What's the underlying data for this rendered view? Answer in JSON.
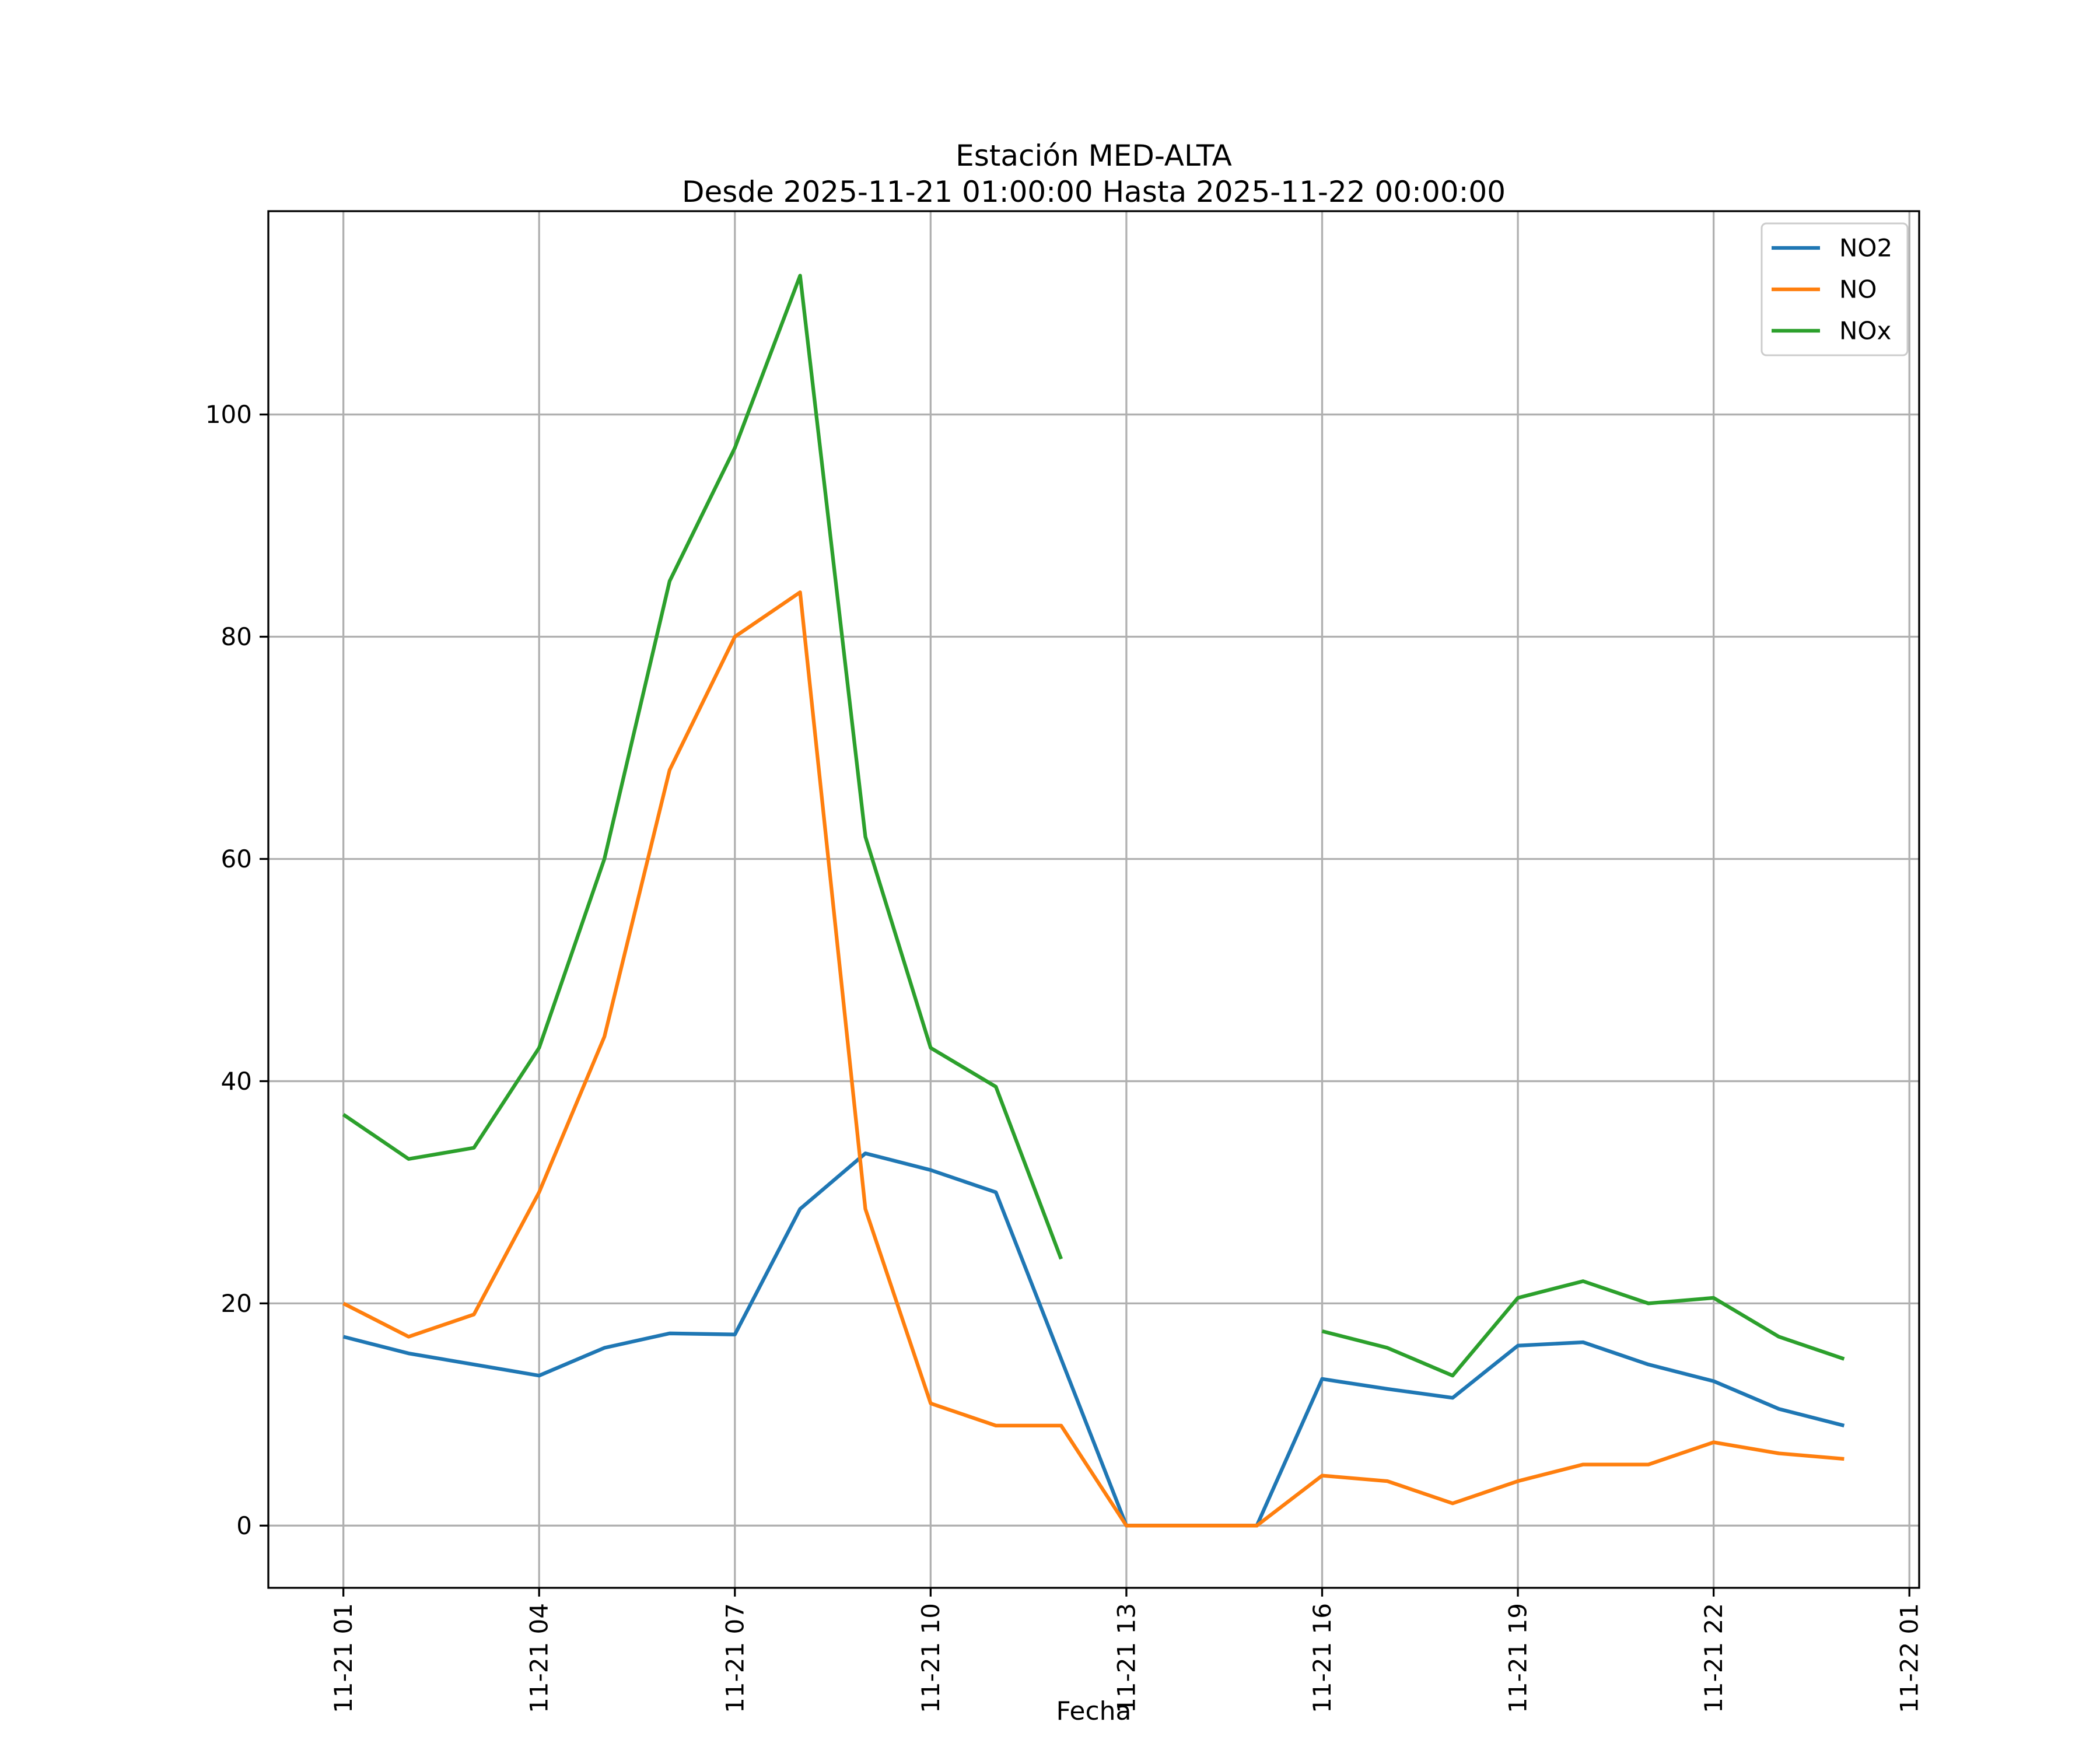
{
  "title": {
    "line1": "Estación MED-ALTA",
    "line2": "Desde 2025-11-21 01:00:00 Hasta 2025-11-22 00:00:00"
  },
  "chart_data": {
    "type": "line",
    "title": "Estación MED-ALTA\nDesde 2025-11-21 01:00:00 Hasta 2025-11-22 00:00:00",
    "xlabel": "Fecha",
    "ylabel": "",
    "grid": true,
    "legend_position": "upper right",
    "x_unit": "hour",
    "x_hours": [
      1,
      2,
      3,
      4,
      5,
      6,
      7,
      8,
      9,
      10,
      11,
      12,
      13,
      14,
      15,
      16,
      17,
      18,
      19,
      20,
      21,
      22,
      23,
      24
    ],
    "x_tick_hours": [
      1,
      4,
      7,
      10,
      13,
      16,
      19,
      22,
      25
    ],
    "x_tick_labels": [
      "11-21 01",
      "11-21 04",
      "11-21 07",
      "11-21 10",
      "11-21 13",
      "11-21 16",
      "11-21 19",
      "11-21 22",
      "11-22 01"
    ],
    "x_tick_rotation": 90,
    "y_ticks": [
      0,
      20,
      40,
      60,
      80,
      100
    ],
    "xlim": [
      -0.15,
      25.15
    ],
    "ylim": [
      -5.6,
      118.3
    ],
    "series": [
      {
        "name": "NO2",
        "color": "#1f77b4",
        "values": [
          17,
          15.5,
          14.5,
          13.5,
          16,
          17.3,
          17.2,
          28.5,
          33.5,
          32,
          30,
          15,
          0,
          0,
          0,
          13.2,
          12.3,
          11.5,
          16.2,
          16.5,
          14.5,
          13,
          10.5,
          9
        ]
      },
      {
        "name": "NO",
        "color": "#ff7f0e",
        "values": [
          20,
          17,
          19,
          30,
          44,
          68,
          80,
          84,
          28.5,
          11,
          9,
          9,
          0,
          0,
          0,
          4.5,
          4,
          2,
          4,
          5.5,
          5.5,
          7.5,
          6.5,
          6
        ]
      },
      {
        "name": "NOx",
        "color": "#2ca02c",
        "values": [
          37,
          33,
          34,
          43,
          60,
          85,
          97,
          112.5,
          62,
          43,
          39.5,
          24,
          null,
          null,
          null,
          17.5,
          16,
          13.5,
          20.5,
          22,
          20,
          20.5,
          17,
          15
        ]
      }
    ],
    "style": {
      "grid_color": "#b0b0b0",
      "axis_color": "#000000",
      "background": "#ffffff",
      "legend_edge_color": "#cccccc"
    }
  }
}
